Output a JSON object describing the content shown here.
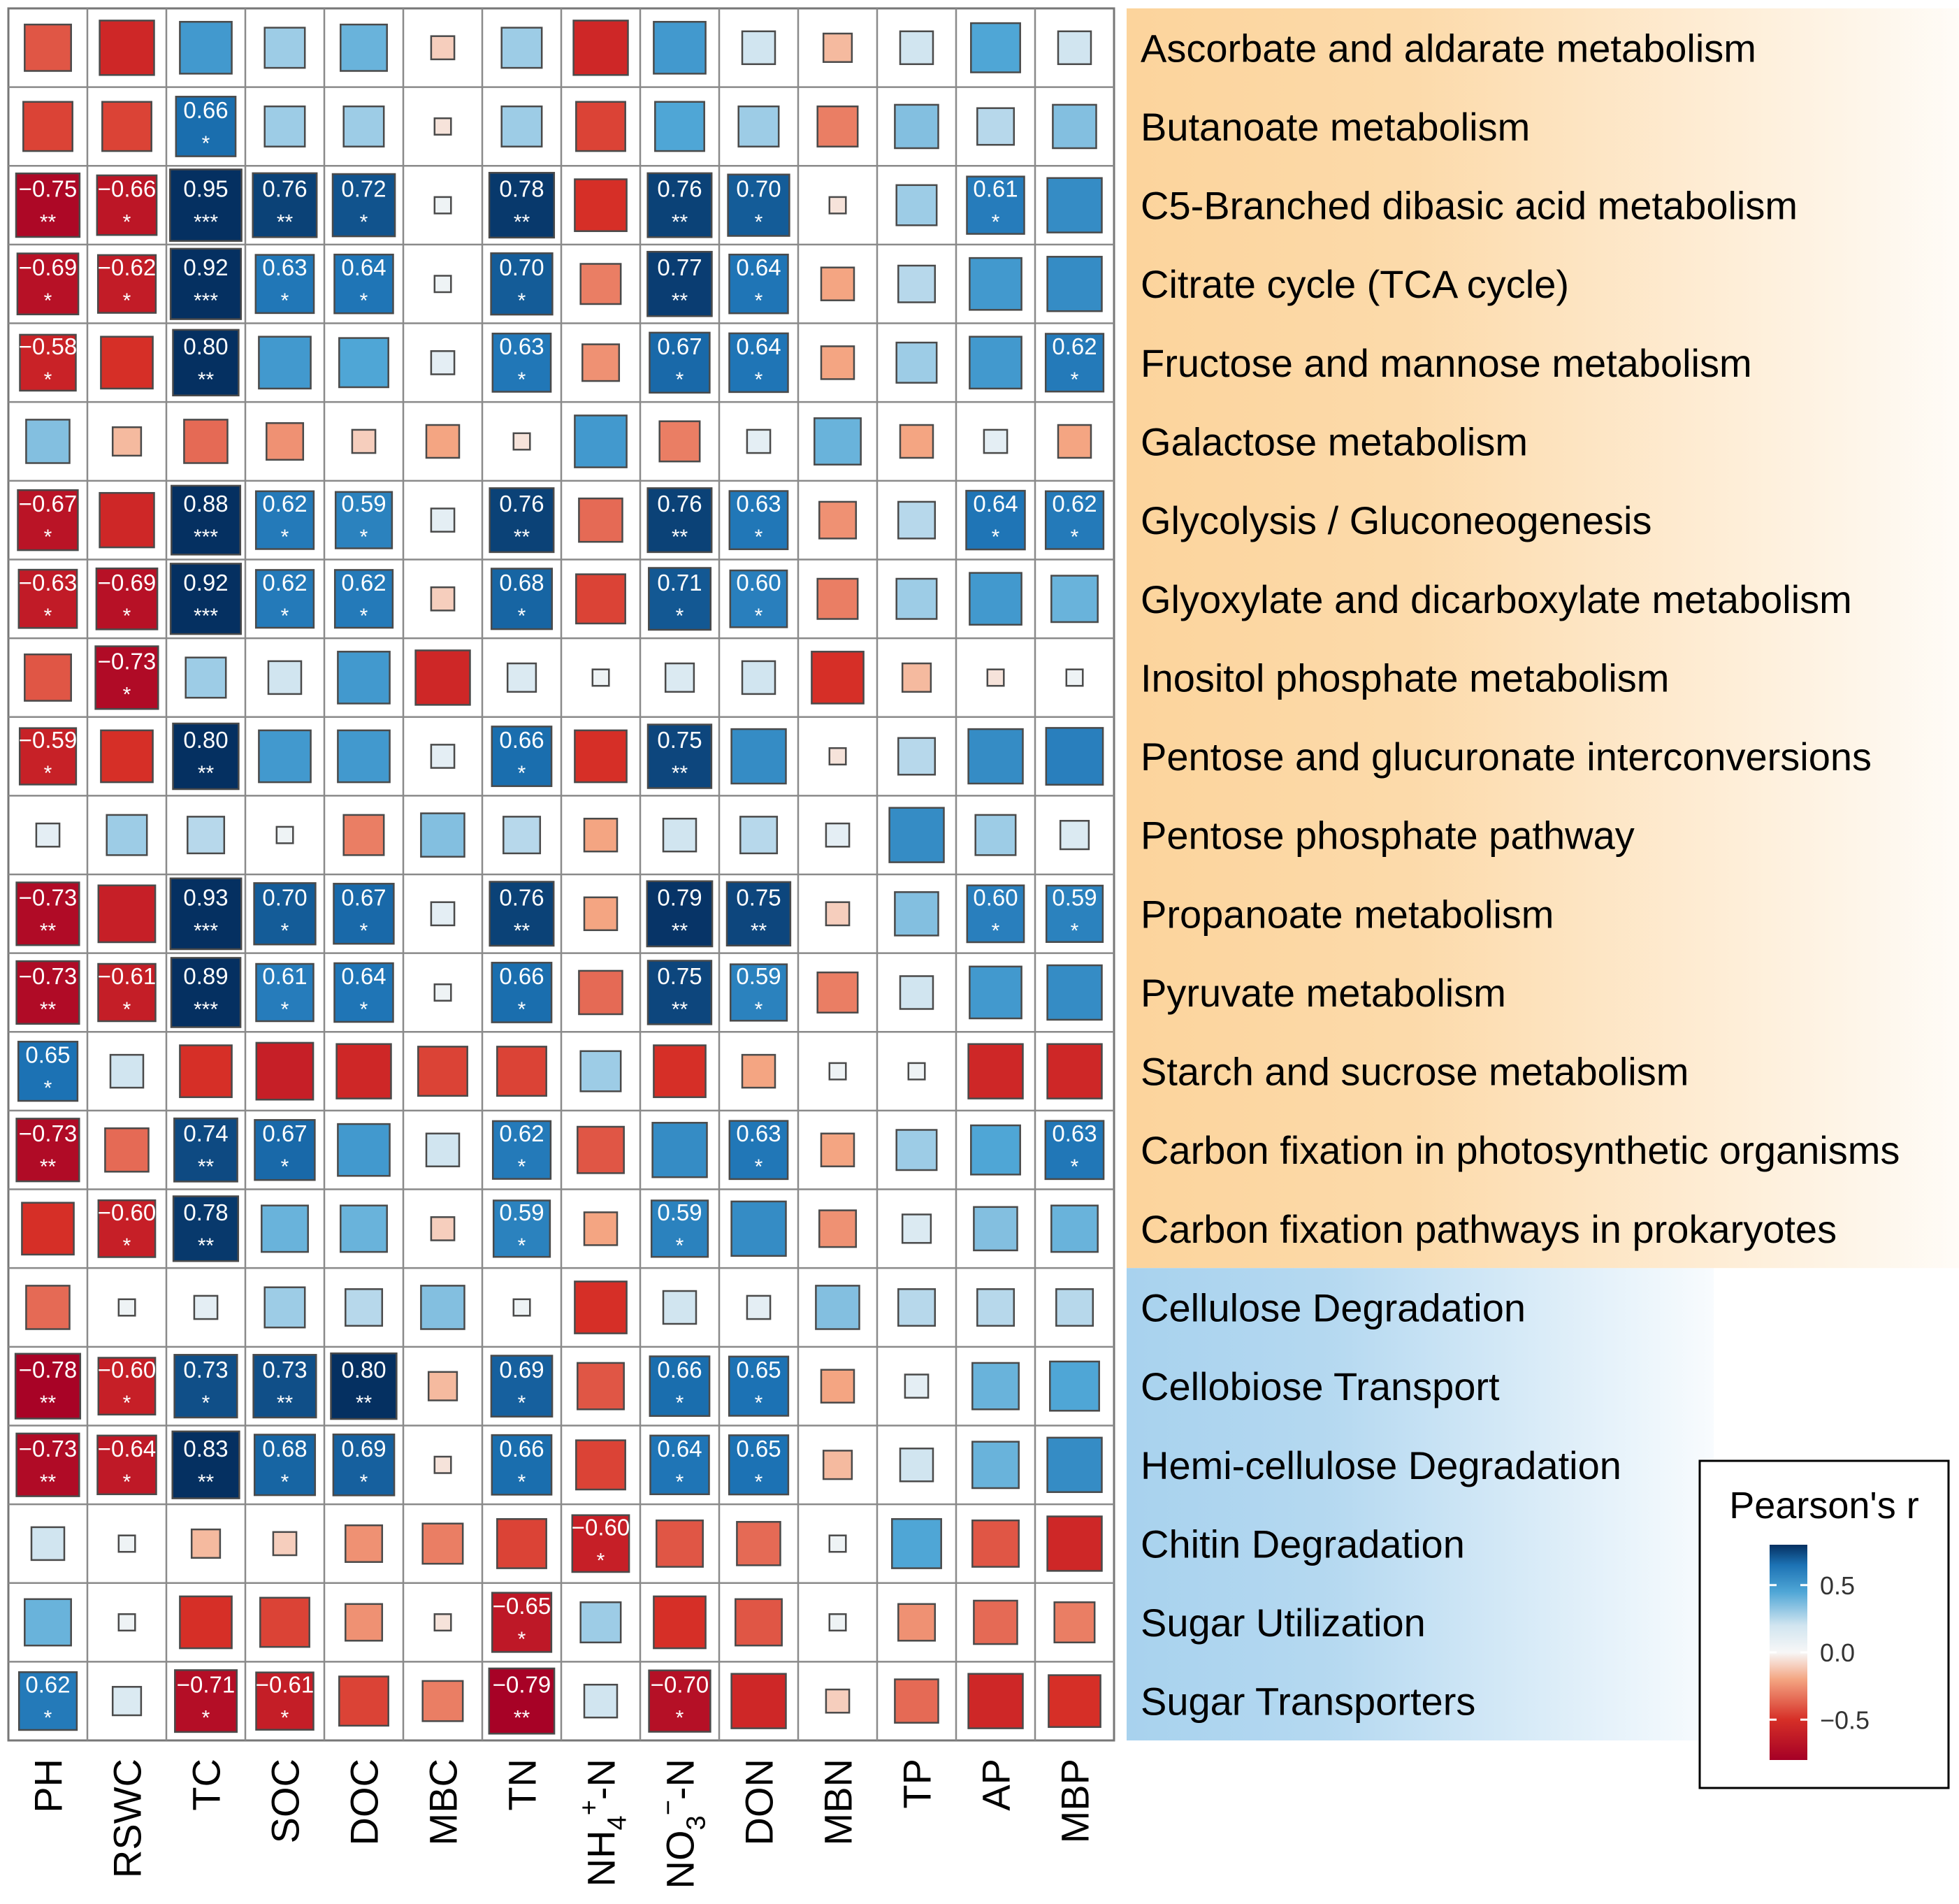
{
  "chart_data": {
    "type": "heatmap",
    "columns": [
      "PH",
      "RSWC",
      "TC",
      "SOC",
      "DOC",
      "MBC",
      "TN",
      "NH4+-N",
      "NO3−-N",
      "DON",
      "MBN",
      "TP",
      "AP",
      "MBP"
    ],
    "column_labels": [
      {
        "base": "PH"
      },
      {
        "base": "RSWC"
      },
      {
        "base": "TC"
      },
      {
        "base": "SOC"
      },
      {
        "base": "DOC"
      },
      {
        "base": "MBC"
      },
      {
        "base": "TN"
      },
      {
        "base": "NH",
        "sub": "4",
        "sup": "+",
        "tail": "-N"
      },
      {
        "base": "NO",
        "sub": "3",
        "sup": "−",
        "tail": "-N"
      },
      {
        "base": "DON"
      },
      {
        "base": "MBN"
      },
      {
        "base": "TP"
      },
      {
        "base": "AP"
      },
      {
        "base": "MBP"
      }
    ],
    "groups": [
      {
        "rows": [
          0,
          15
        ],
        "fill": "#fcd49c"
      },
      {
        "rows": [
          16,
          21
        ],
        "fill": "#a8d2ee"
      }
    ],
    "rows": [
      {
        "name": "Ascorbate and aldarate metabolism",
        "values": [
          -0.4,
          -0.55,
          0.5,
          0.3,
          0.4,
          -0.1,
          0.3,
          -0.55,
          0.5,
          0.2,
          -0.15,
          0.2,
          0.45,
          0.2
        ],
        "labels": [
          null,
          null,
          null,
          null,
          null,
          null,
          null,
          null,
          null,
          null,
          null,
          null,
          null,
          null
        ],
        "stars": [
          "",
          "",
          "",
          "",
          "",
          "",
          "",
          "",
          "",
          "",
          "",
          "",
          "",
          ""
        ]
      },
      {
        "name": "Butanoate metabolism",
        "values": [
          -0.45,
          -0.45,
          0.66,
          0.3,
          0.3,
          -0.05,
          0.3,
          -0.45,
          0.45,
          0.3,
          -0.3,
          0.35,
          0.25,
          0.35
        ],
        "labels": [
          null,
          null,
          "0.66",
          null,
          null,
          null,
          null,
          null,
          null,
          null,
          null,
          null,
          null,
          null
        ],
        "stars": [
          "",
          "",
          "*",
          "",
          "",
          "",
          "",
          "",
          "",
          "",
          "",
          "",
          "",
          ""
        ]
      },
      {
        "name": "C5-Branched dibasic acid metabolism",
        "values": [
          -0.75,
          -0.66,
          0.95,
          0.76,
          0.72,
          0.05,
          0.78,
          -0.5,
          0.76,
          0.7,
          -0.05,
          0.3,
          0.61,
          0.55
        ],
        "labels": [
          "−0.75",
          "−0.66",
          "0.95",
          "0.76",
          "0.72",
          null,
          "0.78",
          null,
          "0.76",
          "0.70",
          null,
          null,
          "0.61",
          null
        ],
        "stars": [
          "**",
          "*",
          "***",
          "**",
          "*",
          "",
          "**",
          "",
          "**",
          "*",
          "",
          "",
          "*",
          ""
        ]
      },
      {
        "name": "Citrate cycle (TCA cycle)",
        "values": [
          -0.69,
          -0.62,
          0.92,
          0.63,
          0.64,
          0.05,
          0.7,
          -0.3,
          0.77,
          0.64,
          -0.2,
          0.25,
          0.5,
          0.55
        ],
        "labels": [
          "−0.69",
          "−0.62",
          "0.92",
          "0.63",
          "0.64",
          null,
          "0.70",
          null,
          "0.77",
          "0.64",
          null,
          null,
          null,
          null
        ],
        "stars": [
          "*",
          "*",
          "***",
          "*",
          "*",
          "",
          "*",
          "",
          "**",
          "*",
          "",
          "",
          "",
          ""
        ]
      },
      {
        "name": "Fructose and mannose metabolism",
        "values": [
          -0.58,
          -0.5,
          0.8,
          0.5,
          0.45,
          0.1,
          0.63,
          -0.25,
          0.67,
          0.64,
          -0.2,
          0.3,
          0.5,
          0.62
        ],
        "labels": [
          "−0.58",
          null,
          "0.80",
          null,
          null,
          null,
          "0.63",
          null,
          "0.67",
          "0.64",
          null,
          null,
          null,
          "0.62"
        ],
        "stars": [
          "*",
          "",
          "**",
          "",
          "",
          "",
          "*",
          "",
          "*",
          "*",
          "",
          "",
          "",
          "*"
        ]
      },
      {
        "name": "Galactose metabolism",
        "values": [
          0.35,
          -0.15,
          -0.35,
          -0.25,
          -0.1,
          -0.2,
          -0.05,
          0.5,
          -0.3,
          0.1,
          0.4,
          -0.2,
          0.1,
          -0.2
        ],
        "labels": [
          null,
          null,
          null,
          null,
          null,
          null,
          null,
          null,
          null,
          null,
          null,
          null,
          null,
          null
        ],
        "stars": [
          "",
          "",
          "",
          "",
          "",
          "",
          "",
          "",
          "",
          "",
          "",
          "",
          "",
          ""
        ]
      },
      {
        "name": "Glycolysis / Gluconeogenesis",
        "values": [
          -0.67,
          -0.55,
          0.88,
          0.62,
          0.59,
          0.1,
          0.76,
          -0.35,
          0.76,
          0.63,
          -0.25,
          0.25,
          0.64,
          0.62
        ],
        "labels": [
          "−0.67",
          null,
          "0.88",
          "0.62",
          "0.59",
          null,
          "0.76",
          null,
          "0.76",
          "0.63",
          null,
          null,
          "0.64",
          "0.62"
        ],
        "stars": [
          "*",
          "",
          "***",
          "*",
          "*",
          "",
          "**",
          "",
          "**",
          "*",
          "",
          "",
          "*",
          "*"
        ]
      },
      {
        "name": "Glyoxylate and dicarboxylate metabolism",
        "values": [
          -0.63,
          -0.69,
          0.92,
          0.62,
          0.62,
          -0.1,
          0.68,
          -0.45,
          0.71,
          0.6,
          -0.3,
          0.3,
          0.5,
          0.4
        ],
        "labels": [
          "−0.63",
          "−0.69",
          "0.92",
          "0.62",
          "0.62",
          null,
          "0.68",
          null,
          "0.71",
          "0.60",
          null,
          null,
          null,
          null
        ],
        "stars": [
          "*",
          "*",
          "***",
          "*",
          "*",
          "",
          "*",
          "",
          "*",
          "*",
          "",
          "",
          "",
          ""
        ]
      },
      {
        "name": "Inositol phosphate metabolism",
        "values": [
          -0.4,
          -0.73,
          0.3,
          0.2,
          0.5,
          -0.55,
          0.15,
          0.05,
          0.15,
          0.2,
          -0.5,
          -0.15,
          -0.05,
          0.05
        ],
        "labels": [
          null,
          "−0.73",
          null,
          null,
          null,
          null,
          null,
          null,
          null,
          null,
          null,
          null,
          null,
          null
        ],
        "stars": [
          "",
          "*",
          "",
          "",
          "",
          "",
          "",
          "",
          "",
          "",
          "",
          "",
          "",
          ""
        ]
      },
      {
        "name": "Pentose and glucuronate interconversions",
        "values": [
          -0.59,
          -0.5,
          0.8,
          0.5,
          0.5,
          0.1,
          0.66,
          -0.5,
          0.75,
          0.55,
          -0.05,
          0.25,
          0.55,
          0.6
        ],
        "labels": [
          "−0.59",
          null,
          "0.80",
          null,
          null,
          null,
          "0.66",
          null,
          "0.75",
          null,
          null,
          null,
          null,
          null
        ],
        "stars": [
          "*",
          "",
          "**",
          "",
          "",
          "",
          "*",
          "",
          "**",
          "",
          "",
          "",
          "",
          ""
        ]
      },
      {
        "name": "Pentose phosphate pathway",
        "values": [
          0.1,
          0.3,
          0.25,
          0.05,
          -0.3,
          0.35,
          0.25,
          -0.2,
          0.2,
          0.25,
          0.1,
          0.55,
          0.3,
          0.15
        ],
        "labels": [
          null,
          null,
          null,
          null,
          null,
          null,
          null,
          null,
          null,
          null,
          null,
          null,
          null,
          null
        ],
        "stars": [
          "",
          "",
          "",
          "",
          "",
          "",
          "",
          "",
          "",
          "",
          "",
          "",
          "",
          ""
        ]
      },
      {
        "name": "Propanoate metabolism",
        "values": [
          -0.73,
          -0.6,
          0.93,
          0.7,
          0.67,
          0.1,
          0.76,
          -0.2,
          0.79,
          0.75,
          -0.1,
          0.35,
          0.6,
          0.59
        ],
        "labels": [
          "−0.73",
          null,
          "0.93",
          "0.70",
          "0.67",
          null,
          "0.76",
          null,
          "0.79",
          "0.75",
          null,
          null,
          "0.60",
          "0.59"
        ],
        "stars": [
          "**",
          "",
          "***",
          "*",
          "*",
          "",
          "**",
          "",
          "**",
          "**",
          "",
          "",
          "*",
          "*"
        ]
      },
      {
        "name": "Pyruvate metabolism",
        "values": [
          -0.73,
          -0.61,
          0.89,
          0.61,
          0.64,
          0.05,
          0.66,
          -0.35,
          0.75,
          0.59,
          -0.3,
          0.2,
          0.5,
          0.55
        ],
        "labels": [
          "−0.73",
          "−0.61",
          "0.89",
          "0.61",
          "0.64",
          null,
          "0.66",
          null,
          "0.75",
          "0.59",
          null,
          null,
          null,
          null
        ],
        "stars": [
          "**",
          "*",
          "***",
          "*",
          "*",
          "",
          "*",
          "",
          "**",
          "*",
          "",
          "",
          "",
          ""
        ]
      },
      {
        "name": "Starch and sucrose metabolism",
        "values": [
          0.65,
          0.2,
          -0.5,
          -0.6,
          -0.55,
          -0.45,
          -0.45,
          0.3,
          -0.5,
          -0.2,
          0.05,
          0.05,
          -0.55,
          -0.55
        ],
        "labels": [
          "0.65",
          null,
          null,
          null,
          null,
          null,
          null,
          null,
          null,
          null,
          null,
          null,
          null,
          null
        ],
        "stars": [
          "*",
          "",
          "",
          "",
          "",
          "",
          "",
          "",
          "",
          "",
          "",
          "",
          "",
          ""
        ]
      },
      {
        "name": "Carbon fixation in photosynthetic organisms",
        "values": [
          -0.73,
          -0.35,
          0.74,
          0.67,
          0.5,
          0.2,
          0.62,
          -0.4,
          0.55,
          0.63,
          -0.2,
          0.3,
          0.45,
          0.63
        ],
        "labels": [
          "−0.73",
          null,
          "0.74",
          "0.67",
          null,
          null,
          "0.62",
          null,
          null,
          "0.63",
          null,
          null,
          null,
          "0.63"
        ],
        "stars": [
          "**",
          "",
          "**",
          "*",
          "",
          "",
          "*",
          "",
          "",
          "*",
          "",
          "",
          "",
          "*"
        ]
      },
      {
        "name": "Carbon fixation pathways in prokaryotes",
        "values": [
          -0.5,
          -0.6,
          0.78,
          0.4,
          0.4,
          -0.1,
          0.59,
          -0.2,
          0.59,
          0.55,
          -0.25,
          0.15,
          0.35,
          0.4
        ],
        "labels": [
          null,
          "−0.60",
          "0.78",
          null,
          null,
          null,
          "0.59",
          null,
          "0.59",
          null,
          null,
          null,
          null,
          null
        ],
        "stars": [
          "",
          "*",
          "**",
          "",
          "",
          "",
          "*",
          "",
          "*",
          "",
          "",
          "",
          "",
          ""
        ]
      },
      {
        "name": "Cellulose Degradation",
        "values": [
          -0.35,
          0.05,
          0.1,
          0.3,
          0.25,
          0.35,
          0.05,
          -0.5,
          0.2,
          0.1,
          0.35,
          0.25,
          0.25,
          0.25
        ],
        "labels": [
          null,
          null,
          null,
          null,
          null,
          null,
          null,
          null,
          null,
          null,
          null,
          null,
          null,
          null
        ],
        "stars": [
          "",
          "",
          "",
          "",
          "",
          "",
          "",
          "",
          "",
          "",
          "",
          "",
          "",
          ""
        ]
      },
      {
        "name": "Cellobiose Transport",
        "values": [
          -0.78,
          -0.6,
          0.73,
          0.73,
          0.8,
          -0.15,
          0.69,
          -0.4,
          0.66,
          0.65,
          -0.2,
          0.1,
          0.4,
          0.45
        ],
        "labels": [
          "−0.78",
          "−0.60",
          "0.73",
          "0.73",
          "0.80",
          null,
          "0.69",
          null,
          "0.66",
          "0.65",
          null,
          null,
          null,
          null
        ],
        "stars": [
          "**",
          "*",
          "*",
          "**",
          "**",
          "",
          "*",
          "",
          "*",
          "*",
          "",
          "",
          "",
          ""
        ]
      },
      {
        "name": "Hemi-cellulose Degradation",
        "values": [
          -0.73,
          -0.64,
          0.83,
          0.68,
          0.69,
          -0.05,
          0.66,
          -0.45,
          0.64,
          0.65,
          -0.15,
          0.2,
          0.4,
          0.55
        ],
        "labels": [
          "−0.73",
          "−0.64",
          "0.83",
          "0.68",
          "0.69",
          null,
          "0.66",
          null,
          "0.64",
          "0.65",
          null,
          null,
          null,
          null
        ],
        "stars": [
          "**",
          "*",
          "**",
          "*",
          "*",
          "",
          "*",
          "",
          "*",
          "*",
          "",
          "",
          "",
          ""
        ]
      },
      {
        "name": "Chitin Degradation",
        "values": [
          0.2,
          0.05,
          -0.15,
          -0.1,
          -0.25,
          -0.3,
          -0.45,
          -0.6,
          -0.4,
          -0.35,
          0.05,
          0.45,
          -0.4,
          -0.55
        ],
        "labels": [
          null,
          null,
          null,
          null,
          null,
          null,
          null,
          "−0.60",
          null,
          null,
          null,
          null,
          null,
          null
        ],
        "stars": [
          "",
          "",
          "",
          "",
          "",
          "",
          "",
          "*",
          "",
          "",
          "",
          "",
          "",
          ""
        ]
      },
      {
        "name": "Sugar Utilization",
        "values": [
          0.4,
          0.05,
          -0.5,
          -0.45,
          -0.25,
          -0.05,
          -0.65,
          0.3,
          -0.5,
          -0.4,
          0.05,
          -0.25,
          -0.35,
          -0.3
        ],
        "labels": [
          null,
          null,
          null,
          null,
          null,
          null,
          "−0.65",
          null,
          null,
          null,
          null,
          null,
          null,
          null
        ],
        "stars": [
          "",
          "",
          "",
          "",
          "",
          "",
          "*",
          "",
          "",
          "",
          "",
          "",
          "",
          ""
        ]
      },
      {
        "name": "Sugar Transporters",
        "values": [
          0.62,
          0.15,
          -0.71,
          -0.61,
          -0.45,
          -0.3,
          -0.79,
          0.2,
          -0.7,
          -0.55,
          -0.1,
          -0.35,
          -0.55,
          -0.5
        ],
        "labels": [
          "0.62",
          null,
          "−0.71",
          "−0.61",
          null,
          null,
          "−0.79",
          null,
          "−0.70",
          null,
          null,
          null,
          null,
          null
        ],
        "stars": [
          "*",
          "",
          "*",
          "*",
          "",
          "",
          "**",
          "",
          "*",
          "",
          "",
          "",
          "",
          ""
        ]
      }
    ],
    "color_scale": {
      "min": -0.8,
      "max": 0.8,
      "stops": [
        {
          "v": -0.8,
          "c": "#a50026"
        },
        {
          "v": -0.5,
          "c": "#d62f27"
        },
        {
          "v": -0.2,
          "c": "#f4a582"
        },
        {
          "v": 0.0,
          "c": "#f7f7f7"
        },
        {
          "v": 0.2,
          "c": "#d1e5f0"
        },
        {
          "v": 0.45,
          "c": "#4fa6d6"
        },
        {
          "v": 0.65,
          "c": "#1c72b4"
        },
        {
          "v": 0.8,
          "c": "#053061"
        }
      ]
    },
    "legend": {
      "title": "Pearson's r",
      "ticks": [
        {
          "value": 0.5,
          "label": "0.5"
        },
        {
          "value": 0.0,
          "label": "0.0"
        },
        {
          "value": -0.5,
          "label": "−0.5"
        }
      ],
      "placement": "bottom-right"
    }
  }
}
